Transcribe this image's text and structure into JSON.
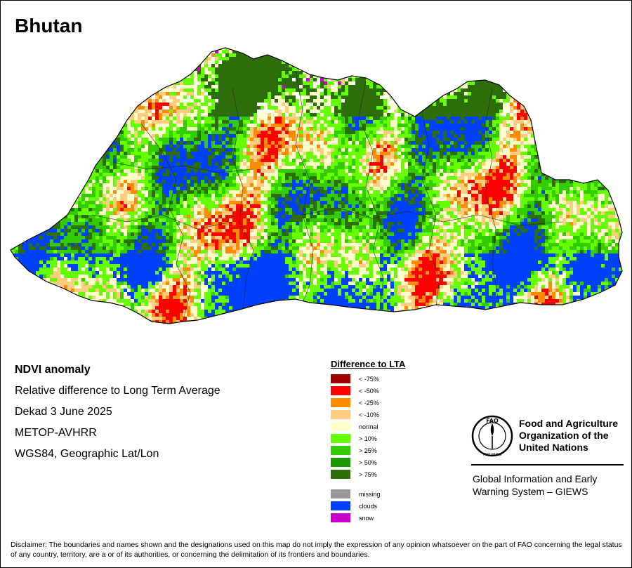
{
  "map": {
    "title": "Bhutan"
  },
  "info": {
    "lines": [
      "NDVI anomaly",
      "Relative difference to Long Term Average",
      "Dekad 3 June 2025",
      "METOP-AVHRR",
      "WGS84, Geographic Lat/Lon"
    ]
  },
  "legend": {
    "title": "Difference to LTA",
    "items": [
      {
        "label": "< -75%",
        "color": "#a00000"
      },
      {
        "label": "< -50%",
        "color": "#ff0000"
      },
      {
        "label": "< -25%",
        "color": "#ff8c00"
      },
      {
        "label": "< -10%",
        "color": "#ffcc80"
      },
      {
        "label": "normal",
        "color": "#ffffcc"
      },
      {
        "label": "> 10%",
        "color": "#66ff00"
      },
      {
        "label": "> 25%",
        "color": "#33cc00"
      },
      {
        "label": "> 50%",
        "color": "#1a9900"
      },
      {
        "label": "> 75%",
        "color": "#2d6e0a"
      }
    ],
    "extra_items": [
      {
        "label": "missing",
        "color": "#999999"
      },
      {
        "label": "clouds",
        "color": "#0040ff"
      },
      {
        "label": "snow",
        "color": "#cc00cc"
      }
    ]
  },
  "fao": {
    "name_lines": [
      "Food and Agriculture",
      "Organization of the",
      "United Nations"
    ],
    "logo_text": "FAO",
    "logo_motto": "FIAT PANIS",
    "system_lines": [
      "Global Information and Early",
      "Warning System – GIEWS"
    ]
  },
  "disclaimer": {
    "text": "Disclaimer: The boundaries and names shown and the designations used on this map do not imply the expression of any opinion whatsoever on the part of FAO concerning the legal status of any country, territory, are a or of its authorities, or concerning the delimitation of its frontiers and boundaries."
  },
  "colors": {
    "clouds": "#0040ff",
    "forest_dark": "#2d6e0a",
    "green_light": "#66ff00",
    "green_mid": "#33cc00",
    "normal": "#ffffcc",
    "snow": "#cc00cc",
    "neg_light": "#ffcc80",
    "neg_mid": "#ff8c00",
    "neg_strong": "#ff0000"
  }
}
